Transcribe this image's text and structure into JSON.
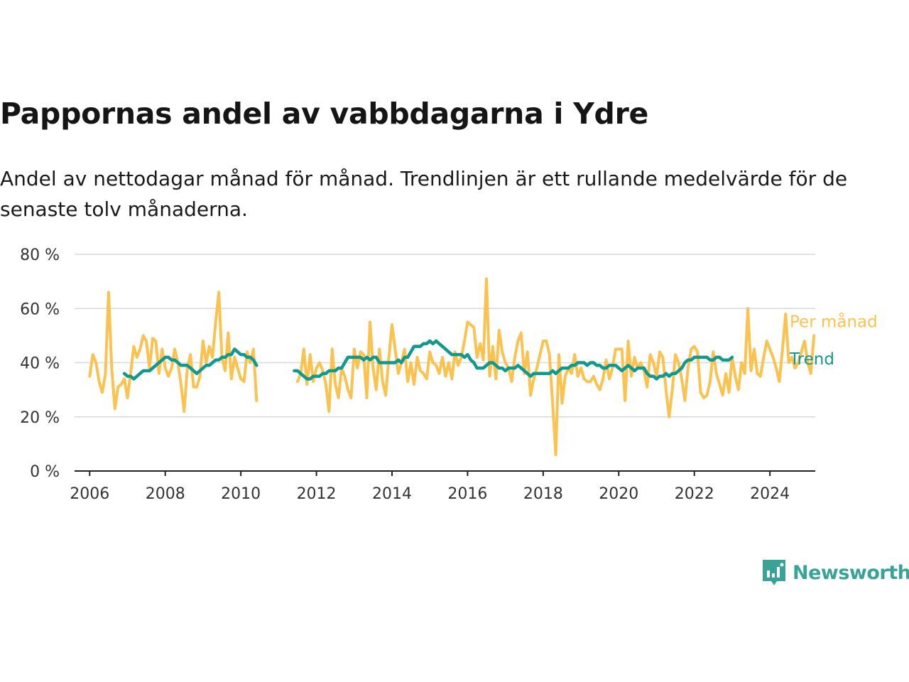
{
  "title": "Pappornas andel av vabbdagarna i Ydre",
  "subtitle": "Andel av nettodagar månad för månad. Trendlinjen är ett rullande medelvärde för de senaste tolv månaderna.",
  "brand": {
    "name": "Newsworthy",
    "icon": "newsworthy-logo-icon",
    "color": "#3aa398"
  },
  "chart_data": {
    "type": "line",
    "xlabel": "",
    "ylabel": "",
    "xlim": [
      2005.6,
      2025.2
    ],
    "ylim": [
      0,
      80
    ],
    "x_ticks": [
      "2006",
      "2008",
      "2010",
      "2012",
      "2014",
      "2016",
      "2018",
      "2020",
      "2022",
      "2024"
    ],
    "y_ticks": [
      "0 %",
      "20 %",
      "40 %",
      "60 %",
      "80 %"
    ],
    "grid": "horizontal",
    "legend": "end-of-line labels (right)",
    "start": "2006-01",
    "series": [
      {
        "name": "Per månad",
        "color": "#fcc24f",
        "values": [
          35,
          43,
          40,
          33,
          29,
          36,
          66,
          38,
          23,
          31,
          32,
          34,
          27,
          36,
          46,
          42,
          45,
          50,
          48,
          38,
          49,
          48,
          36,
          45,
          38,
          35,
          38,
          45,
          40,
          32,
          22,
          38,
          43,
          31,
          31,
          35,
          48,
          40,
          46,
          42,
          55,
          66,
          42,
          37,
          51,
          34,
          42,
          38,
          34,
          33,
          44,
          40,
          45,
          26,
          null,
          null,
          null,
          null,
          null,
          null,
          null,
          null,
          null,
          null,
          null,
          null,
          33,
          36,
          45,
          32,
          43,
          33,
          38,
          40,
          37,
          32,
          22,
          45,
          32,
          27,
          38,
          35,
          30,
          27,
          45,
          38,
          44,
          43,
          27,
          55,
          38,
          30,
          45,
          33,
          28,
          42,
          54,
          45,
          36,
          40,
          45,
          33,
          40,
          32,
          42,
          37,
          36,
          34,
          44,
          40,
          39,
          36,
          42,
          35,
          40,
          34,
          44,
          39,
          42,
          48,
          55,
          54,
          53,
          42,
          47,
          41,
          71,
          35,
          46,
          34,
          52,
          44,
          40,
          38,
          33,
          42,
          48,
          51,
          36,
          44,
          28,
          34,
          38,
          43,
          48,
          48,
          43,
          25,
          6,
          43,
          25,
          35,
          38,
          36,
          43,
          35,
          38,
          34,
          33,
          33,
          35,
          32,
          30,
          34,
          41,
          34,
          38,
          45,
          45,
          45,
          26,
          48,
          35,
          42,
          38,
          40,
          37,
          31,
          43,
          40,
          35,
          44,
          42,
          30,
          20,
          30,
          43,
          40,
          34,
          26,
          38,
          45,
          46,
          44,
          29,
          27,
          28,
          33,
          44,
          36,
          32,
          28,
          36,
          29,
          42,
          35,
          30,
          40,
          36,
          60,
          37,
          45,
          36,
          35,
          42,
          48,
          45,
          42,
          38,
          33,
          45,
          58,
          40,
          42,
          38,
          40,
          44,
          48,
          40,
          36,
          50
        ]
      },
      {
        "name": "Trend",
        "color": "#12998e",
        "values": [
          null,
          null,
          null,
          null,
          null,
          null,
          null,
          null,
          null,
          null,
          null,
          36,
          35,
          35,
          34,
          35,
          36,
          37,
          37,
          37,
          38,
          39,
          40,
          41,
          42,
          42,
          41,
          41,
          40,
          39,
          39,
          39,
          38,
          37,
          36,
          37,
          38,
          39,
          39,
          40,
          41,
          41,
          42,
          42,
          43,
          43,
          45,
          44,
          43,
          43,
          42,
          42,
          41,
          39,
          null,
          null,
          null,
          null,
          null,
          null,
          null,
          null,
          null,
          null,
          null,
          null,
          null,
          null,
          null,
          null,
          null,
          null,
          null,
          null,
          null,
          null,
          null,
          null,
          null,
          null,
          null,
          null,
          null,
          null,
          null,
          null,
          null,
          null,
          null,
          null,
          null,
          null,
          null,
          null,
          null,
          null,
          null,
          null,
          null,
          null,
          null,
          null,
          null,
          null,
          null,
          null,
          null,
          null,
          null,
          null,
          null,
          null,
          null,
          null,
          null,
          null,
          null,
          null,
          null,
          null,
          null,
          null,
          null,
          null,
          null,
          null,
          null,
          null,
          null,
          null,
          null,
          null,
          null,
          null,
          null,
          null,
          null,
          null,
          null,
          null,
          null,
          null,
          null,
          null,
          null,
          null,
          null,
          null,
          null,
          null,
          null,
          null,
          null,
          null,
          null,
          null,
          null,
          null,
          null,
          null,
          null,
          null,
          null,
          null,
          null,
          null,
          null,
          null,
          null,
          null,
          null,
          null,
          null,
          null,
          null,
          null,
          null,
          null,
          null,
          null,
          null,
          null,
          null,
          null,
          null,
          null,
          null,
          null,
          null,
          null,
          null,
          null,
          null,
          null,
          null,
          null,
          null,
          null,
          null,
          null,
          null,
          null,
          null,
          null,
          null,
          null,
          null,
          null,
          null,
          null,
          null,
          null,
          null,
          null,
          null,
          null,
          null,
          null,
          null,
          null,
          null,
          null,
          null,
          null,
          null,
          null,
          null,
          null,
          null,
          null,
          null,
          null,
          null,
          null,
          null,
          null,
          null,
          null,
          null,
          null,
          null,
          null,
          null,
          null
        ],
        "segments": [
          {
            "start": "2011-06",
            "values": [
              37,
              37,
              36,
              35,
              34,
              34,
              35,
              35,
              35,
              36,
              36,
              37,
              37,
              37,
              38,
              38,
              40,
              42,
              42,
              42,
              42,
              42,
              41,
              42,
              41,
              42,
              42,
              40,
              40,
              40,
              40,
              40,
              40,
              41,
              40,
              42,
              42,
              44,
              46,
              46,
              46,
              47,
              47,
              48,
              47,
              48,
              47,
              46,
              45,
              44,
              43,
              43,
              43,
              43,
              42,
              43,
              41,
              40,
              38,
              38,
              38,
              39,
              40,
              40,
              39,
              38,
              38,
              37,
              38,
              38,
              38,
              39,
              38,
              37,
              36,
              35,
              36,
              36,
              36,
              36,
              36,
              36,
              37,
              36,
              37,
              38,
              38,
              38,
              39,
              39,
              40,
              40,
              40,
              39,
              40,
              40,
              39,
              39,
              38,
              38,
              39,
              39,
              39,
              38,
              37,
              38,
              39,
              38,
              37,
              38,
              38,
              38,
              36,
              35,
              35,
              34,
              35,
              35,
              36,
              35,
              36,
              36,
              37,
              38,
              40,
              41,
              41,
              42,
              42,
              42,
              42,
              42,
              41,
              41,
              42,
              42,
              41,
              41,
              41,
              42
            ]
          }
        ]
      }
    ]
  }
}
